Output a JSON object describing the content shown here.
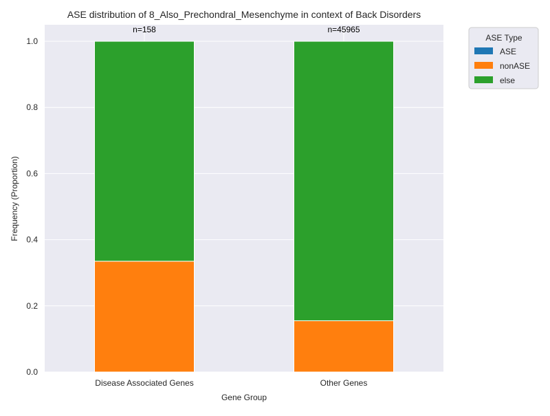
{
  "chart_data": {
    "type": "bar",
    "stacked": true,
    "title": "ASE distribution of 8_Also_Prechondral_Mesenchyme in context of Back Disorders",
    "xlabel": "Gene Group",
    "ylabel": "Frequency (Proportion)",
    "categories": [
      "Disease Associated Genes",
      "Other Genes"
    ],
    "annotations": [
      "n=158",
      "n=45965"
    ],
    "ylim": [
      0,
      1.05
    ],
    "yticks": [
      0.0,
      0.2,
      0.4,
      0.6,
      0.8,
      1.0
    ],
    "ytick_labels": [
      "0.0",
      "0.2",
      "0.4",
      "0.6",
      "0.8",
      "1.0"
    ],
    "grid": true,
    "legend": {
      "title": "ASE Type",
      "placement": "outside-top-right"
    },
    "series": [
      {
        "name": "ASE",
        "color": "#1f77b4",
        "values": [
          0.0,
          0.0
        ]
      },
      {
        "name": "nonASE",
        "color": "#ff7f0e",
        "values": [
          0.335,
          0.155
        ]
      },
      {
        "name": "else",
        "color": "#2ca02c",
        "values": [
          0.665,
          0.845
        ]
      }
    ],
    "plot_background": "#eaeaf2",
    "grid_color": "#ffffff"
  }
}
